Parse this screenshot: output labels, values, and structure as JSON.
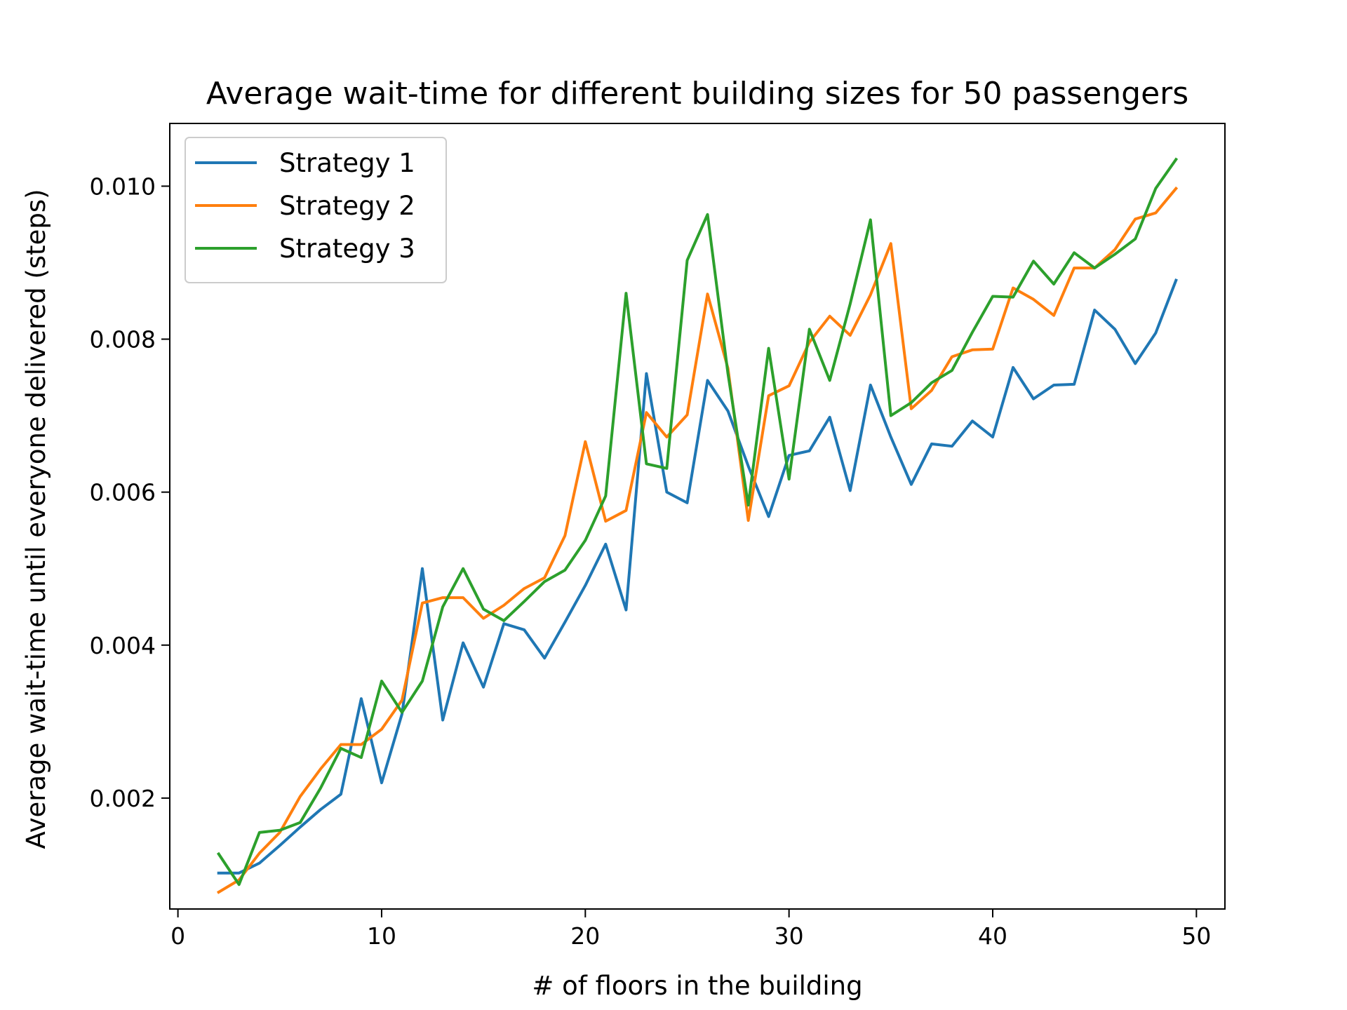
{
  "chart_data": {
    "type": "line",
    "title": "Average wait-time for different building sizes for 50 passengers",
    "xlabel": "# of floors in the building",
    "ylabel": "Average wait-time until everyone delivered (steps)",
    "xlim": [
      -0.4,
      51.4
    ],
    "ylim": [
      0.00055,
      0.01082
    ],
    "xticks": [
      0,
      10,
      20,
      30,
      40,
      50
    ],
    "yticks": [
      0.002,
      0.004,
      0.006,
      0.008,
      0.01
    ],
    "xtick_labels": [
      "0",
      "10",
      "20",
      "30",
      "40",
      "50"
    ],
    "ytick_labels": [
      "0.002",
      "0.004",
      "0.006",
      "0.008",
      "0.010"
    ],
    "grid": false,
    "legend_position": "top-left",
    "x": [
      2,
      3,
      4,
      5,
      6,
      7,
      8,
      9,
      10,
      11,
      12,
      13,
      14,
      15,
      16,
      17,
      18,
      19,
      20,
      21,
      22,
      23,
      24,
      25,
      26,
      27,
      28,
      29,
      30,
      31,
      32,
      33,
      34,
      35,
      36,
      37,
      38,
      39,
      40,
      41,
      42,
      43,
      44,
      45,
      46,
      47,
      48,
      49
    ],
    "series": [
      {
        "name": "Strategy 1",
        "color": "#1f77b4",
        "values": [
          0.00102,
          0.00102,
          0.00115,
          0.00138,
          0.00162,
          0.00185,
          0.00205,
          0.0033,
          0.0022,
          0.0031,
          0.005,
          0.00302,
          0.00403,
          0.00345,
          0.00428,
          0.0042,
          0.00383,
          0.0043,
          0.00478,
          0.00532,
          0.00446,
          0.00755,
          0.006,
          0.00586,
          0.00746,
          0.00706,
          0.00634,
          0.00568,
          0.00648,
          0.00654,
          0.00698,
          0.00602,
          0.0074,
          0.00672,
          0.0061,
          0.00663,
          0.0066,
          0.00693,
          0.00672,
          0.00763,
          0.00722,
          0.0074,
          0.00741,
          0.00838,
          0.00813,
          0.00768,
          0.00808,
          0.00877
        ]
      },
      {
        "name": "Strategy 2",
        "color": "#ff7f0e",
        "values": [
          0.00077,
          0.00093,
          0.00128,
          0.00155,
          0.00202,
          0.00238,
          0.0027,
          0.0027,
          0.0029,
          0.00328,
          0.00455,
          0.00462,
          0.00462,
          0.00435,
          0.00452,
          0.00474,
          0.00488,
          0.00543,
          0.00666,
          0.00562,
          0.00576,
          0.00704,
          0.00672,
          0.00701,
          0.00859,
          0.00762,
          0.00563,
          0.00726,
          0.00739,
          0.00796,
          0.0083,
          0.00805,
          0.00858,
          0.00925,
          0.00709,
          0.00733,
          0.00777,
          0.00786,
          0.00787,
          0.00867,
          0.00852,
          0.00831,
          0.00893,
          0.00893,
          0.00917,
          0.00957,
          0.00965,
          0.00997
        ]
      },
      {
        "name": "Strategy 3",
        "color": "#2ca02c",
        "values": [
          0.00127,
          0.00087,
          0.00155,
          0.00158,
          0.00168,
          0.00213,
          0.00265,
          0.00253,
          0.00353,
          0.00312,
          0.00353,
          0.0045,
          0.005,
          0.00447,
          0.00432,
          0.00457,
          0.00483,
          0.00498,
          0.00537,
          0.00595,
          0.0086,
          0.00637,
          0.00631,
          0.00903,
          0.00963,
          0.00755,
          0.00583,
          0.00788,
          0.00617,
          0.00813,
          0.00746,
          0.00846,
          0.00956,
          0.007,
          0.00717,
          0.00743,
          0.00759,
          0.00809,
          0.00856,
          0.00855,
          0.00902,
          0.00872,
          0.00913,
          0.00893,
          0.00911,
          0.00931,
          0.00997,
          0.01035
        ]
      }
    ]
  }
}
